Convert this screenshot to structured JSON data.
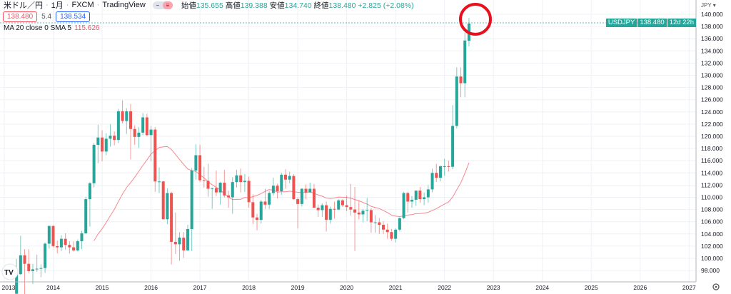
{
  "header": {
    "symbol": "米ドル／円",
    "interval": "1月",
    "exchange": "FXCM",
    "source": "TradingView",
    "open_label": "始値",
    "open": "135.655",
    "high_label": "高値",
    "high": "139.388",
    "low_label": "安値",
    "low": "134.740",
    "close_label": "終値",
    "close": "138.480",
    "change": "+2.825 (+2.08%)",
    "bid": "138.480",
    "spread": "5.4",
    "ask": "138.534"
  },
  "indicator": {
    "label": "MA 20 close 0 SMA 5",
    "value": "115.626"
  },
  "axis": {
    "currency": "JPY ▾"
  },
  "price_tag": {
    "symbol": "USDJPY",
    "price": "138.480",
    "countdown": "12d 22h"
  },
  "colors": {
    "up": "#26a69a",
    "down": "#ef5350",
    "ma": "#f7878f",
    "annotation": "#e8101e"
  },
  "chart_data": {
    "type": "candlestick",
    "ylim": [
      96,
      141
    ],
    "yticks": [
      "98.000",
      "100.000",
      "102.000",
      "104.000",
      "106.000",
      "108.000",
      "110.000",
      "112.000",
      "114.000",
      "116.000",
      "118.000",
      "120.000",
      "122.000",
      "124.000",
      "126.000",
      "128.000",
      "130.000",
      "132.000",
      "134.000",
      "136.000",
      "138.000",
      "140.000"
    ],
    "xticks": [
      "2013",
      "2014",
      "2015",
      "2016",
      "2017",
      "2018",
      "2019",
      "2020",
      "2021",
      "2022",
      "2023",
      "2024",
      "2025",
      "2026",
      "2027"
    ],
    "grid": true,
    "start_month": "2013-04",
    "ohlc": [
      [
        94.2,
        99.9,
        92.6,
        97.4
      ],
      [
        97.4,
        103.7,
        97.3,
        100.5
      ],
      [
        100.5,
        101.5,
        93.8,
        99.1
      ],
      [
        99.1,
        101.5,
        97.6,
        97.9
      ],
      [
        97.9,
        99.1,
        95.8,
        98.2
      ],
      [
        98.2,
        100.6,
        97.8,
        98.3
      ],
      [
        98.3,
        99.0,
        96.9,
        98.4
      ],
      [
        98.4,
        102.6,
        97.6,
        102.4
      ],
      [
        102.4,
        105.4,
        101.6,
        105.3
      ],
      [
        105.3,
        105.4,
        101.8,
        102.0
      ],
      [
        102.0,
        102.9,
        100.8,
        101.8
      ],
      [
        101.8,
        103.8,
        101.2,
        103.2
      ],
      [
        103.2,
        104.1,
        101.4,
        102.2
      ],
      [
        102.2,
        102.8,
        100.8,
        101.8
      ],
      [
        101.8,
        102.8,
        101.1,
        101.3
      ],
      [
        101.3,
        103.1,
        101.1,
        102.8
      ],
      [
        102.8,
        104.5,
        101.5,
        104.1
      ],
      [
        104.1,
        110.1,
        104.0,
        109.7
      ],
      [
        109.7,
        112.5,
        105.2,
        112.3
      ],
      [
        112.3,
        118.9,
        111.6,
        118.6
      ],
      [
        118.6,
        121.9,
        115.6,
        119.8
      ],
      [
        119.8,
        121.0,
        115.9,
        117.5
      ],
      [
        117.5,
        120.5,
        116.9,
        119.6
      ],
      [
        119.6,
        122.0,
        118.3,
        120.1
      ],
      [
        120.1,
        120.8,
        118.5,
        119.4
      ],
      [
        119.4,
        124.5,
        118.9,
        124.1
      ],
      [
        124.1,
        125.9,
        122.1,
        122.5
      ],
      [
        122.5,
        124.6,
        120.4,
        124.1
      ],
      [
        124.1,
        125.3,
        116.2,
        121.2
      ],
      [
        121.2,
        121.8,
        118.6,
        119.9
      ],
      [
        119.9,
        121.5,
        118.1,
        120.6
      ],
      [
        120.6,
        123.8,
        120.2,
        123.1
      ],
      [
        123.1,
        123.7,
        120.0,
        120.2
      ],
      [
        120.2,
        121.7,
        115.9,
        121.1
      ],
      [
        121.1,
        121.5,
        110.9,
        112.6
      ],
      [
        112.6,
        114.9,
        110.7,
        112.6
      ],
      [
        112.6,
        112.7,
        106.8,
        106.4
      ],
      [
        106.4,
        111.5,
        105.6,
        110.7
      ],
      [
        110.7,
        110.9,
        99.0,
        102.7
      ],
      [
        102.7,
        107.5,
        100.7,
        102.3
      ],
      [
        102.3,
        104.3,
        99.6,
        103.4
      ],
      [
        103.4,
        104.3,
        100.1,
        101.3
      ],
      [
        101.3,
        105.5,
        101.2,
        104.8
      ],
      [
        104.8,
        114.8,
        101.2,
        114.4
      ],
      [
        114.4,
        118.7,
        112.9,
        116.9
      ],
      [
        116.9,
        118.6,
        112.5,
        112.8
      ],
      [
        112.8,
        115.0,
        111.6,
        112.7
      ],
      [
        112.7,
        115.5,
        110.1,
        111.4
      ],
      [
        111.4,
        111.6,
        108.1,
        111.5
      ],
      [
        111.5,
        114.4,
        110.2,
        110.8
      ],
      [
        110.8,
        112.5,
        108.8,
        112.4
      ],
      [
        112.4,
        114.5,
        110.0,
        110.3
      ],
      [
        110.3,
        111.1,
        108.3,
        110.0
      ],
      [
        110.0,
        113.3,
        107.3,
        112.5
      ],
      [
        112.5,
        114.5,
        111.6,
        113.6
      ],
      [
        113.6,
        114.7,
        110.8,
        112.5
      ],
      [
        112.5,
        113.8,
        110.9,
        112.7
      ],
      [
        112.7,
        113.4,
        108.3,
        109.2
      ],
      [
        109.2,
        110.5,
        105.6,
        106.7
      ],
      [
        106.7,
        107.3,
        104.6,
        106.3
      ],
      [
        106.3,
        109.6,
        105.7,
        109.3
      ],
      [
        109.3,
        111.4,
        108.1,
        108.8
      ],
      [
        108.8,
        111.0,
        108.1,
        110.7
      ],
      [
        110.7,
        113.2,
        110.3,
        111.9
      ],
      [
        111.9,
        112.2,
        109.8,
        111.0
      ],
      [
        111.0,
        114.0,
        110.4,
        113.7
      ],
      [
        113.7,
        114.6,
        111.4,
        112.9
      ],
      [
        112.9,
        114.2,
        112.3,
        113.5
      ],
      [
        113.5,
        113.8,
        109.6,
        109.7
      ],
      [
        109.7,
        110.0,
        104.9,
        108.9
      ],
      [
        108.9,
        111.5,
        108.5,
        111.4
      ],
      [
        111.4,
        112.1,
        109.7,
        110.8
      ],
      [
        110.8,
        112.4,
        110.8,
        111.4
      ],
      [
        111.4,
        112.2,
        108.3,
        108.3
      ],
      [
        108.3,
        108.8,
        106.8,
        107.9
      ],
      [
        107.9,
        109.0,
        106.8,
        108.7
      ],
      [
        108.7,
        109.3,
        104.4,
        106.3
      ],
      [
        106.3,
        108.5,
        105.7,
        108.1
      ],
      [
        108.1,
        109.3,
        106.5,
        108.0
      ],
      [
        108.0,
        109.7,
        107.9,
        109.5
      ],
      [
        109.5,
        109.7,
        108.4,
        108.7
      ],
      [
        108.7,
        110.3,
        107.7,
        108.4
      ],
      [
        108.4,
        112.2,
        107.0,
        108.0
      ],
      [
        108.0,
        111.7,
        101.2,
        107.5
      ],
      [
        107.5,
        109.4,
        106.4,
        107.2
      ],
      [
        107.2,
        108.1,
        105.9,
        107.8
      ],
      [
        107.8,
        109.9,
        106.1,
        107.9
      ],
      [
        107.9,
        108.2,
        104.2,
        105.9
      ],
      [
        105.9,
        107.1,
        104.2,
        105.9
      ],
      [
        105.9,
        106.6,
        104.0,
        105.5
      ],
      [
        105.5,
        106.1,
        104.0,
        104.7
      ],
      [
        104.7,
        105.7,
        103.2,
        104.3
      ],
      [
        104.3,
        104.8,
        102.9,
        103.2
      ],
      [
        103.2,
        104.9,
        102.6,
        104.7
      ],
      [
        104.7,
        106.7,
        104.4,
        106.6
      ],
      [
        106.6,
        110.9,
        106.4,
        110.7
      ],
      [
        110.7,
        110.9,
        107.5,
        109.3
      ],
      [
        109.3,
        110.2,
        108.3,
        109.6
      ],
      [
        109.6,
        111.1,
        108.6,
        111.1
      ],
      [
        111.1,
        111.7,
        109.1,
        109.7
      ],
      [
        109.7,
        110.8,
        108.7,
        110.0
      ],
      [
        110.0,
        112.0,
        109.1,
        111.3
      ],
      [
        111.3,
        114.7,
        110.8,
        114.0
      ],
      [
        114.0,
        115.5,
        112.5,
        113.2
      ],
      [
        113.2,
        115.2,
        112.6,
        115.1
      ],
      [
        115.1,
        116.3,
        113.5,
        115.1
      ],
      [
        115.1,
        116.0,
        114.2,
        115.0
      ],
      [
        115.0,
        125.1,
        114.6,
        121.7
      ],
      [
        121.7,
        131.3,
        121.3,
        129.8
      ],
      [
        129.8,
        131.3,
        126.4,
        128.7
      ],
      [
        128.7,
        137.0,
        126.4,
        135.7
      ],
      [
        135.655,
        139.388,
        134.74,
        138.48
      ]
    ],
    "ma_period": 20,
    "last_price": 138.48
  }
}
